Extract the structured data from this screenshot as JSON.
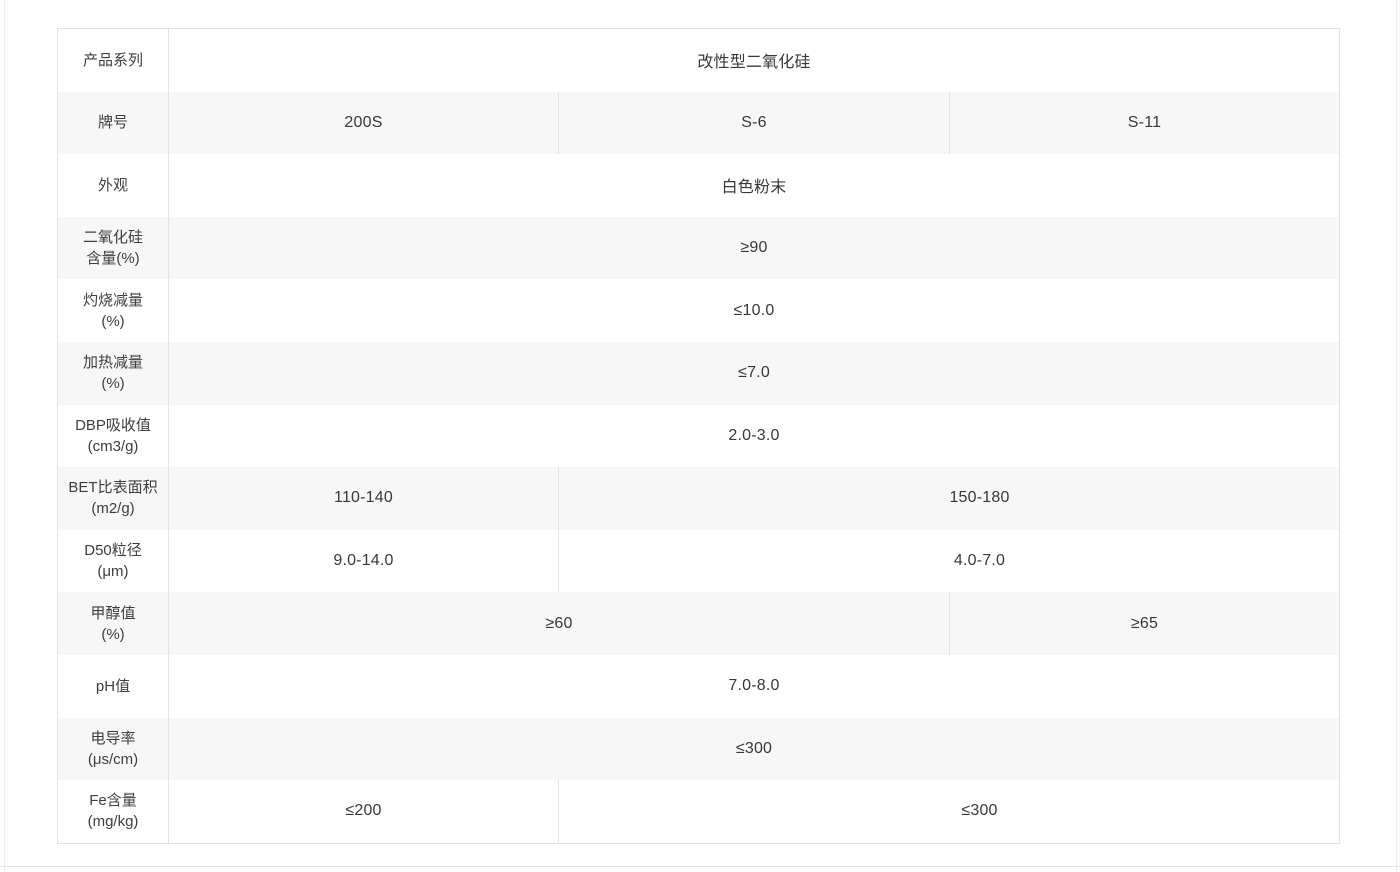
{
  "table": {
    "title": "改性型二氧化硅",
    "grades": [
      "200S",
      "S-6",
      "S-11"
    ],
    "rows": [
      {
        "label": "产品系列",
        "label2": "",
        "cells": [
          {
            "text": "改性型二氧化硅",
            "span": 3
          }
        ]
      },
      {
        "label": "牌号",
        "label2": "",
        "cells": [
          {
            "text": "200S",
            "span": 1
          },
          {
            "text": "S-6",
            "span": 1
          },
          {
            "text": "S-11",
            "span": 1
          }
        ]
      },
      {
        "label": "外观",
        "label2": "",
        "cells": [
          {
            "text": "白色粉末",
            "span": 3
          }
        ]
      },
      {
        "label": "二氧化硅",
        "label2": "含量(%)",
        "cells": [
          {
            "text": "≥90",
            "span": 3
          }
        ]
      },
      {
        "label": "灼烧减量",
        "label2": "(%)",
        "cells": [
          {
            "text": "≤10.0",
            "span": 3
          }
        ]
      },
      {
        "label": "加热减量",
        "label2": "(%)",
        "cells": [
          {
            "text": "≤7.0",
            "span": 3
          }
        ]
      },
      {
        "label": "DBP吸收值",
        "label2": "(cm3/g)",
        "cells": [
          {
            "text": "2.0-3.0",
            "span": 3
          }
        ]
      },
      {
        "label": "BET比表面积",
        "label2": "(m2/g)",
        "cells": [
          {
            "text": "110-140",
            "span": 1
          },
          {
            "text": "150-180",
            "span": 2,
            "shift": true
          }
        ]
      },
      {
        "label": "D50粒径",
        "label2": "(μm)",
        "cells": [
          {
            "text": "9.0-14.0",
            "span": 1
          },
          {
            "text": "4.0-7.0",
            "span": 2,
            "shift": true
          }
        ]
      },
      {
        "label": "甲醇值",
        "label2": "(%)",
        "cells": [
          {
            "text": "≥60",
            "span": 2
          },
          {
            "text": "≥65",
            "span": 1
          }
        ]
      },
      {
        "label": "pH值",
        "label2": "",
        "cells": [
          {
            "text": "7.0-8.0",
            "span": 3
          }
        ]
      },
      {
        "label": "电导率",
        "label2": "(μs/cm)",
        "cells": [
          {
            "text": "≤300",
            "span": 3
          }
        ]
      },
      {
        "label": "Fe含量",
        "label2": "(mg/kg)",
        "cells": [
          {
            "text": "≤200",
            "span": 1
          },
          {
            "text": "≤300",
            "span": 2,
            "shift": true
          }
        ]
      }
    ]
  },
  "colors": {
    "alt_row_bg": "#f7f7f7",
    "border": "#e2e2e2",
    "label_text": "#3e3e3e",
    "value_text": "#383838"
  }
}
